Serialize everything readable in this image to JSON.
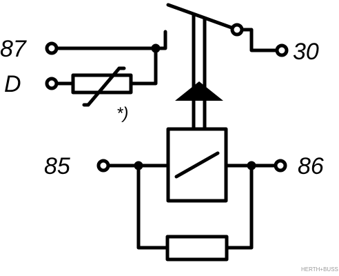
{
  "terminals": {
    "t87": "87",
    "tD": "D",
    "t30": "30",
    "t85": "85",
    "t86": "86"
  },
  "annotations": {
    "varistor_note": "*)"
  },
  "watermark": "HERTH+BUSS",
  "colors": {
    "ink": "#000000",
    "background": "#ffffff",
    "watermark": "#9a9a9a"
  }
}
